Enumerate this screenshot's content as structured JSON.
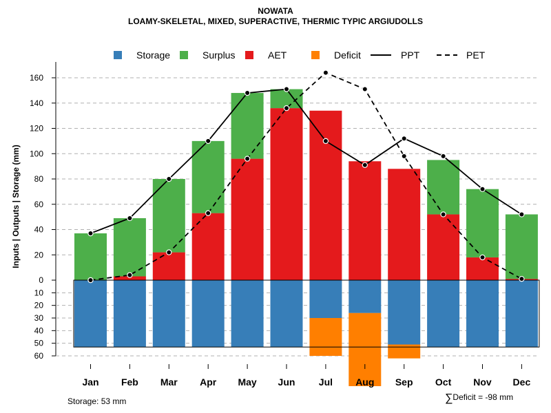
{
  "chart_data": {
    "type": "bar",
    "title": "NOWATA",
    "subtitle": "LOAMY-SKELETAL, MIXED, SUPERACTIVE, THERMIC TYPIC ARGIUDOLLS",
    "ylabel": "Inputs | Outputs | Storage    (mm)",
    "categories": [
      "Jan",
      "Feb",
      "Mar",
      "Apr",
      "May",
      "Jun",
      "Jul",
      "Aug",
      "Sep",
      "Oct",
      "Nov",
      "Dec"
    ],
    "ylim_upper": [
      0,
      170
    ],
    "ylim_lower": [
      0,
      60
    ],
    "yticks_upper": [
      "0",
      "20",
      "40",
      "60",
      "80",
      "100",
      "120",
      "140",
      "160"
    ],
    "yticks_lower": [
      "10",
      "20",
      "30",
      "40",
      "50",
      "60"
    ],
    "storage_capacity": 53,
    "series": [
      {
        "name": "Storage",
        "color": "#377EB8",
        "values": [
          53,
          53,
          53,
          53,
          53,
          53,
          30,
          26,
          51,
          53,
          53,
          53
        ]
      },
      {
        "name": "Surplus",
        "color": "#4DAF4A",
        "values": [
          37,
          46,
          58,
          57,
          52,
          15,
          0,
          0,
          0,
          43,
          54,
          51
        ]
      },
      {
        "name": "AET",
        "color": "#E41A1C",
        "values": [
          0,
          3,
          22,
          53,
          96,
          136,
          134,
          94,
          88,
          52,
          18,
          1
        ]
      },
      {
        "name": "Deficit",
        "color": "#FF7F00",
        "values": [
          0,
          0,
          0,
          0,
          0,
          0,
          30,
          58,
          11,
          0,
          0,
          0
        ]
      },
      {
        "name": "PPT",
        "color": "#000000",
        "style": "solid",
        "values": [
          37,
          49,
          80,
          110,
          148,
          151,
          110,
          91,
          112,
          98,
          72,
          52
        ]
      },
      {
        "name": "PET",
        "color": "#000000",
        "style": "dashed",
        "values": [
          0,
          4,
          22,
          53,
          96,
          136,
          164,
          151,
          98,
          52,
          18,
          1
        ]
      }
    ],
    "legend": [
      "Storage",
      "Surplus",
      "AET",
      "Deficit",
      "PPT",
      "PET"
    ],
    "legend_position": "top",
    "grid": true
  },
  "footer": {
    "storage_text": "Storage: 53 mm",
    "deficit_symbol": "∑",
    "deficit_text": "Deficit = -98 mm"
  }
}
